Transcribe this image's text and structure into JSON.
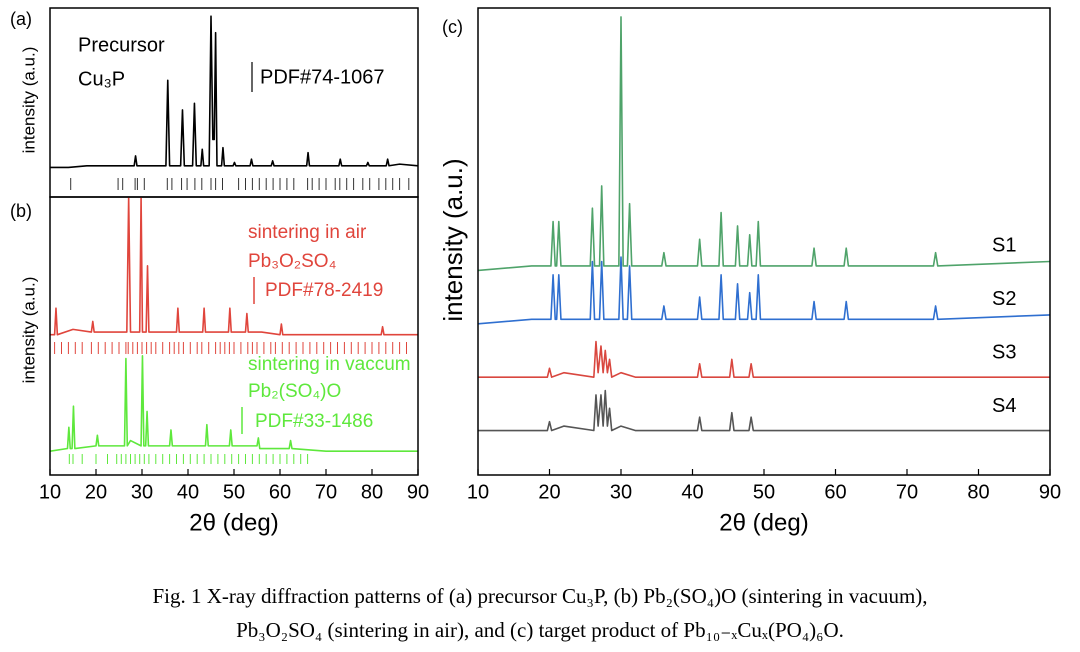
{
  "chart_data": [
    {
      "type": "line",
      "panel_label": "(a)",
      "y_label": "intensity (a.u.)",
      "xlim": [
        10,
        90
      ],
      "ylim": [
        -15,
        100
      ],
      "annotations": [
        {
          "text": "Precursor",
          "color": "#000000"
        },
        {
          "text": "Cu₃P",
          "color": "#000000"
        },
        {
          "text": "PDF#74-1067",
          "color": "#000000"
        }
      ],
      "series": [
        {
          "color": "#000000",
          "x": [
            10,
            14,
            18,
            22,
            26,
            28.3,
            28.6,
            28.9,
            35.2,
            35.6,
            36.0,
            38.4,
            38.8,
            39.2,
            41.0,
            41.4,
            41.8,
            42.8,
            43.1,
            43.4,
            44.6,
            45.0,
            45.4,
            45.7,
            46.0,
            46.3,
            47.3,
            47.6,
            47.9,
            49.8,
            50.1,
            50.4,
            53.5,
            53.8,
            54.1,
            58.1,
            58.4,
            58.7,
            65.8,
            66.1,
            66.4,
            72.8,
            73.1,
            73.4,
            78.8,
            79.1,
            79.4,
            83.1,
            83.4,
            83.7,
            86,
            90
          ],
          "values": [
            3,
            3,
            4,
            4,
            4,
            4,
            10,
            4,
            4,
            56,
            4,
            4,
            38,
            4,
            4,
            42,
            4,
            4,
            14,
            4,
            4,
            95,
            20,
            20,
            85,
            4,
            4,
            15,
            4,
            4,
            6,
            4,
            4,
            8,
            4,
            4,
            7,
            4,
            4,
            12,
            4,
            4,
            8,
            4,
            4,
            6,
            4,
            4,
            8,
            4,
            5,
            4
          ]
        }
      ],
      "references": [
        {
          "name": "PDF#74-1067",
          "color": "#333333",
          "positions": [
            14.5,
            24.8,
            25.8,
            28.5,
            29,
            30.5,
            35.5,
            36.5,
            38.6,
            39.8,
            41.5,
            43,
            45,
            46,
            47.5,
            51,
            52.5,
            54,
            55.5,
            57,
            58.5,
            60,
            61.5,
            63,
            66,
            67,
            68.5,
            70,
            72,
            73,
            74.5,
            76,
            78,
            79.5,
            81.5,
            83,
            84.5,
            86,
            88
          ]
        }
      ]
    },
    {
      "type": "line",
      "panel_label": "(b)",
      "y_label": "intensity (a.u.)",
      "x_label": "2θ (deg)",
      "xlim": [
        10,
        90
      ],
      "ylim": [
        -5,
        100
      ],
      "xticks": [
        10,
        20,
        30,
        40,
        50,
        60,
        70,
        80,
        90
      ],
      "annotations": [
        {
          "text": "sintering in air",
          "color": "#e0453c"
        },
        {
          "text": "Pb₃O₂SO₄",
          "color": "#e0453c"
        },
        {
          "text": "PDF#78-2419",
          "color": "#e0453c"
        },
        {
          "text": "sintering in vaccum",
          "color": "#5ee83c"
        },
        {
          "text": "Pb₂(SO₄)O",
          "color": "#5ee83c"
        },
        {
          "text": "PDF#33-1486",
          "color": "#5ee83c"
        }
      ],
      "series": [
        {
          "color": "#e0453c",
          "x": [
            10,
            11.0,
            11.3,
            11.6,
            15,
            19,
            19.3,
            19.6,
            23,
            26.7,
            27.1,
            27.5,
            29.5,
            29.8,
            30.1,
            30.9,
            31.2,
            31.5,
            35,
            37.5,
            37.8,
            38.1,
            43.2,
            43.5,
            43.8,
            48.8,
            49.1,
            49.4,
            52.5,
            52.8,
            53.1,
            56,
            60,
            60.3,
            60.6,
            65,
            70,
            75,
            82,
            82.3,
            82.6,
            90
          ],
          "values": [
            48,
            48,
            58,
            48,
            50,
            49,
            53,
            49,
            49,
            49,
            100,
            49,
            49,
            100,
            49,
            49,
            74,
            49,
            49,
            49,
            58,
            49,
            49,
            58,
            49,
            49,
            58,
            49,
            49,
            56,
            49,
            49,
            48,
            52,
            48,
            48,
            48,
            48,
            48,
            51,
            48,
            48
          ]
        },
        {
          "color": "#5ee83c",
          "x": [
            10,
            13.8,
            14.1,
            14.4,
            14.8,
            15.1,
            15.4,
            20,
            20.3,
            20.6,
            24,
            26.2,
            26.5,
            26.8,
            27.5,
            29.8,
            30.1,
            30.4,
            30.8,
            31.1,
            31.4,
            36,
            36.3,
            36.6,
            43.8,
            44.1,
            44.4,
            49,
            49.3,
            49.6,
            52,
            55,
            55.3,
            55.6,
            60,
            62,
            62.3,
            62.6,
            70,
            80,
            90
          ],
          "values": [
            4,
            5,
            13,
            5,
            5,
            21,
            5,
            6,
            10,
            6,
            6,
            6,
            39,
            6,
            8,
            6,
            40,
            6,
            6,
            19,
            6,
            6,
            12,
            6,
            6,
            14,
            6,
            6,
            12,
            6,
            6,
            6,
            9,
            5,
            5,
            5,
            8,
            5,
            4,
            4,
            4
          ]
        }
      ],
      "references": [
        {
          "name": "PDF#78-2419",
          "color": "#e0453c",
          "positions": [
            11,
            12.5,
            14,
            15.5,
            17,
            19,
            20.5,
            22,
            23.5,
            25,
            26.5,
            27,
            28,
            29,
            30,
            31,
            32,
            33,
            34.5,
            36,
            37,
            38,
            39,
            40.5,
            42,
            43,
            44.5,
            46,
            47,
            48,
            49,
            50,
            51.5,
            53,
            54,
            55,
            56.5,
            58,
            59,
            60.5,
            62,
            63.5,
            65,
            66.5,
            68,
            69.5,
            71,
            72.5,
            74,
            75.5,
            77,
            78.5,
            80,
            81.5,
            83,
            84.5,
            86,
            87.5
          ]
        },
        {
          "name": "PDF#33-1486",
          "color": "#5ee83c",
          "positions": [
            14.2,
            15,
            17,
            20,
            22.5,
            24.5,
            25.5,
            26.5,
            27.5,
            28.5,
            29.5,
            30.5,
            31.5,
            33,
            34.5,
            36,
            37.5,
            39,
            40.5,
            42,
            43.5,
            45,
            46.5,
            48,
            49.5,
            51,
            52.5,
            54,
            55.5,
            57,
            58.5,
            60,
            61.5,
            63,
            64.5,
            66
          ]
        }
      ]
    },
    {
      "type": "line",
      "panel_label": "(c)",
      "y_label": "intensity (a.u.)",
      "x_label": "2θ (deg)",
      "xlim": [
        10,
        90
      ],
      "ylim": [
        -5,
        100
      ],
      "xticks": [
        10,
        20,
        30,
        40,
        50,
        60,
        70,
        80,
        90
      ],
      "series": [
        {
          "name": "S1",
          "color": "#4fa36a",
          "x": [
            10,
            17.5,
            20.2,
            20.5,
            20.8,
            21.0,
            21.3,
            21.6,
            25.7,
            26.0,
            26.3,
            27.0,
            27.3,
            27.6,
            29.7,
            30.0,
            30.3,
            30.9,
            31.2,
            31.5,
            35.7,
            36.0,
            36.3,
            40.7,
            41.0,
            41.3,
            43.7,
            44.0,
            44.3,
            46.0,
            46.3,
            46.6,
            47.7,
            48.0,
            48.3,
            48.9,
            49.2,
            49.5,
            56.7,
            57.0,
            57.3,
            61.2,
            61.5,
            61.8,
            73.7,
            74.0,
            74.3,
            90
          ],
          "values": [
            41,
            42,
            42,
            52,
            42,
            42,
            52,
            42,
            42,
            55,
            42,
            42,
            60,
            42,
            42,
            98,
            42,
            42,
            56,
            42,
            42,
            45,
            42,
            42,
            48,
            42,
            42,
            54,
            42,
            42,
            51,
            42,
            42,
            49,
            42,
            42,
            52,
            42,
            42,
            46,
            42,
            42,
            46,
            42,
            42,
            45,
            42,
            43
          ]
        },
        {
          "name": "S2",
          "color": "#2f6fd0",
          "x": [
            10,
            17.5,
            20.2,
            20.5,
            20.8,
            21.0,
            21.3,
            21.6,
            25.7,
            26.0,
            26.3,
            27.0,
            27.3,
            27.6,
            29.7,
            30.0,
            30.3,
            30.9,
            31.2,
            31.5,
            35.7,
            36.0,
            36.3,
            40.7,
            41.0,
            41.3,
            43.7,
            44.0,
            44.3,
            46.0,
            46.3,
            46.6,
            47.7,
            48.0,
            48.3,
            48.9,
            49.2,
            49.5,
            56.7,
            57.0,
            57.3,
            61.2,
            61.5,
            61.8,
            73.7,
            74.0,
            74.3,
            90
          ],
          "values": [
            29,
            30,
            30,
            40,
            30,
            30,
            40,
            30,
            30,
            43,
            30,
            30,
            43,
            30,
            30,
            44,
            30,
            30,
            42,
            30,
            30,
            33,
            30,
            30,
            35,
            30,
            30,
            40,
            30,
            30,
            38,
            30,
            30,
            36,
            30,
            30,
            40,
            30,
            30,
            34,
            30,
            30,
            34,
            30,
            30,
            33,
            30,
            31
          ]
        },
        {
          "name": "S3",
          "color": "#d9473f",
          "x": [
            10,
            19.7,
            20,
            20.3,
            22,
            26.2,
            26.5,
            26.8,
            27.2,
            27.5,
            27.8,
            28.1,
            28.4,
            28.7,
            30,
            32,
            36,
            40.7,
            41,
            41.3,
            45.2,
            45.5,
            45.8,
            47.9,
            48.2,
            48.5,
            55,
            62,
            70,
            80,
            90
          ],
          "values": [
            17,
            17,
            19,
            17,
            18,
            17,
            25,
            18,
            24,
            18,
            23,
            18,
            21,
            17,
            18,
            17,
            17,
            17,
            20,
            17,
            17,
            21,
            17,
            17,
            20,
            17,
            17,
            17,
            17,
            17,
            17
          ]
        },
        {
          "name": "S4",
          "color": "#555555",
          "x": [
            10,
            19.7,
            20,
            20.3,
            22,
            26.2,
            26.5,
            26.8,
            27.2,
            27.5,
            27.8,
            28.1,
            28.4,
            28.7,
            30,
            32,
            36,
            40.7,
            41,
            41.3,
            45.2,
            45.5,
            45.8,
            47.9,
            48.2,
            48.5,
            55,
            62,
            70,
            80,
            90
          ],
          "values": [
            5,
            5,
            7,
            5,
            6,
            5,
            13,
            6,
            13,
            6,
            14,
            6,
            10,
            5,
            6,
            5,
            5,
            5,
            8,
            5,
            5,
            9,
            5,
            5,
            8,
            5,
            5,
            5,
            5,
            5,
            5
          ]
        }
      ]
    }
  ],
  "caption": [
    "Fig. 1 X-ray diffraction patterns of (a) precursor Cu₃P, (b) Pb₂(SO₄)O (sintering in vacuum),",
    "Pb₃O₂SO₄ (sintering in air), and (c) target product of Pb₁₀₋ₓCuₓ(PO₄)₆O."
  ]
}
